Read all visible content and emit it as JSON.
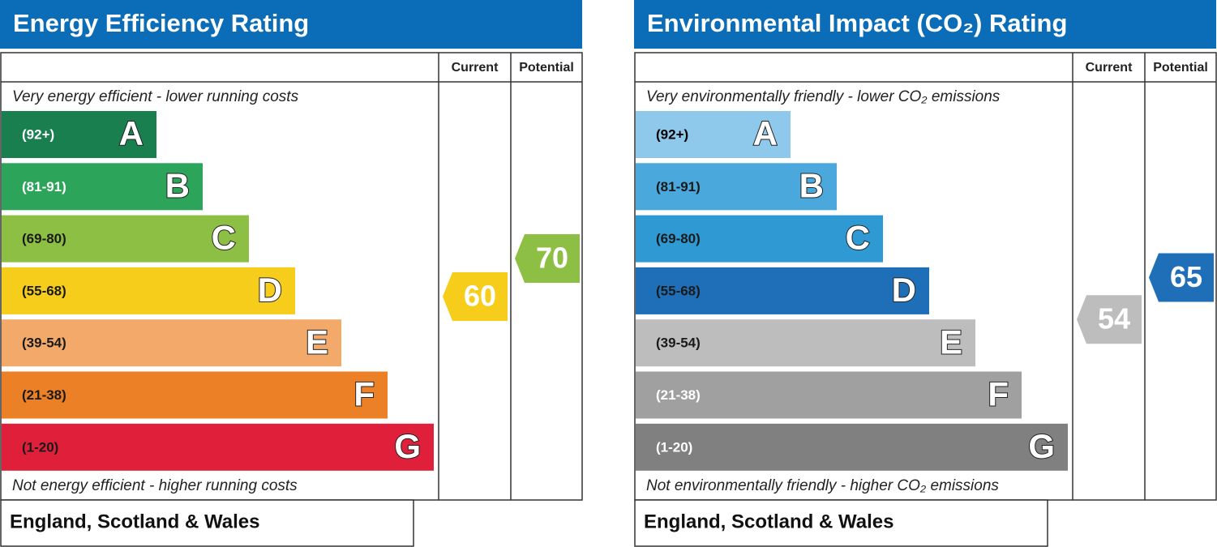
{
  "chart_data": [
    {
      "type": "epc",
      "title": "Energy Efficiency Rating",
      "columns": [
        "Current",
        "Potential"
      ],
      "top_label": "Very energy efficient - lower running costs",
      "bottom_label": "Not energy efficient - higher running costs",
      "footer": "England, Scotland & Wales",
      "bands": [
        {
          "range": "(92+)",
          "letter": "A",
          "color": "#1a7f4f",
          "text_color": "#ffffff"
        },
        {
          "range": "(81-91)",
          "letter": "B",
          "color": "#2ca55a",
          "text_color": "#ffffff"
        },
        {
          "range": "(69-80)",
          "letter": "C",
          "color": "#8cbf44",
          "text_color": "#1a1a1a"
        },
        {
          "range": "(55-68)",
          "letter": "D",
          "color": "#f5cd1a",
          "text_color": "#1a1a1a"
        },
        {
          "range": "(39-54)",
          "letter": "E",
          "color": "#f2a96a",
          "text_color": "#1a1a1a"
        },
        {
          "range": "(21-38)",
          "letter": "F",
          "color": "#ec8027",
          "text_color": "#1a1a1a"
        },
        {
          "range": "(1-20)",
          "letter": "G",
          "color": "#e0203a",
          "text_color": "#1a1a1a"
        }
      ],
      "current": {
        "value": 60,
        "color": "#f5cd1a"
      },
      "potential": {
        "value": 70,
        "color": "#8cbf44"
      }
    },
    {
      "type": "epc",
      "title": "Environmental Impact (CO₂) Rating",
      "columns": [
        "Current",
        "Potential"
      ],
      "top_label": "Very environmentally friendly - lower CO₂ emissions",
      "bottom_label": "Not environmentally friendly - higher CO₂ emissions",
      "footer": "England, Scotland & Wales",
      "bands": [
        {
          "range": "(92+)",
          "letter": "A",
          "color": "#8ec8ea",
          "text_color": "#000000"
        },
        {
          "range": "(81-91)",
          "letter": "B",
          "color": "#4aa8dc",
          "text_color": "#1a1a1a"
        },
        {
          "range": "(69-80)",
          "letter": "C",
          "color": "#2e99d2",
          "text_color": "#1a1a1a"
        },
        {
          "range": "(55-68)",
          "letter": "D",
          "color": "#1e6fb7",
          "text_color": "#1a1a1a"
        },
        {
          "range": "(39-54)",
          "letter": "E",
          "color": "#bdbdbd",
          "text_color": "#1a1a1a"
        },
        {
          "range": "(21-38)",
          "letter": "F",
          "color": "#a0a0a0",
          "text_color": "#ffffff"
        },
        {
          "range": "(1-20)",
          "letter": "G",
          "color": "#808080",
          "text_color": "#ffffff"
        }
      ],
      "current": {
        "value": 54,
        "color": "#bdbdbd"
      },
      "potential": {
        "value": 65,
        "color": "#1e6fb7"
      }
    }
  ]
}
